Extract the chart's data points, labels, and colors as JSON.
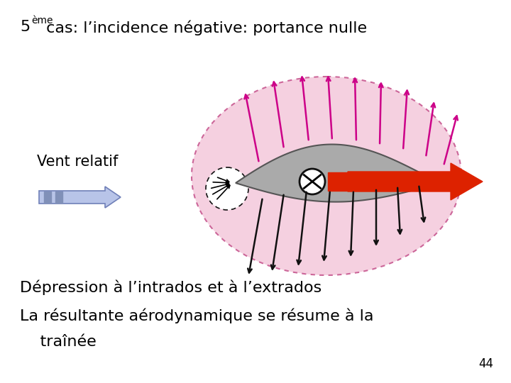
{
  "title_5": "5",
  "title_eme": "ème",
  "title_rest": " cas: l’incidence négative: portance nulle",
  "label_vent_relatif": "Vent relatif",
  "label_depression": "Dépression à l’intrados et à l’extrados",
  "label_resultante": "La résultante aérodynamique se résume à la",
  "label_trainee": "    traînée",
  "page_number": "44",
  "bg_color": "#ffffff",
  "text_color": "#000000",
  "airfoil_fill": "#aaaaaa",
  "airfoil_edge": "#555555",
  "pink_fill": "#f5d0e0",
  "pink_edge": "#cc6699",
  "pink_arrow_color": "#cc0088",
  "black_arrow_color": "#111111",
  "drag_arrow_color": "#dd2200",
  "blue_arrow_fill": "#b8c4e8",
  "blue_arrow_edge": "#7080b8",
  "nose_circle_fill": "#ffffff",
  "nose_circle_edge": "#111111",
  "circle_x_fill": "#ffffff",
  "circle_x_edge": "#111111"
}
